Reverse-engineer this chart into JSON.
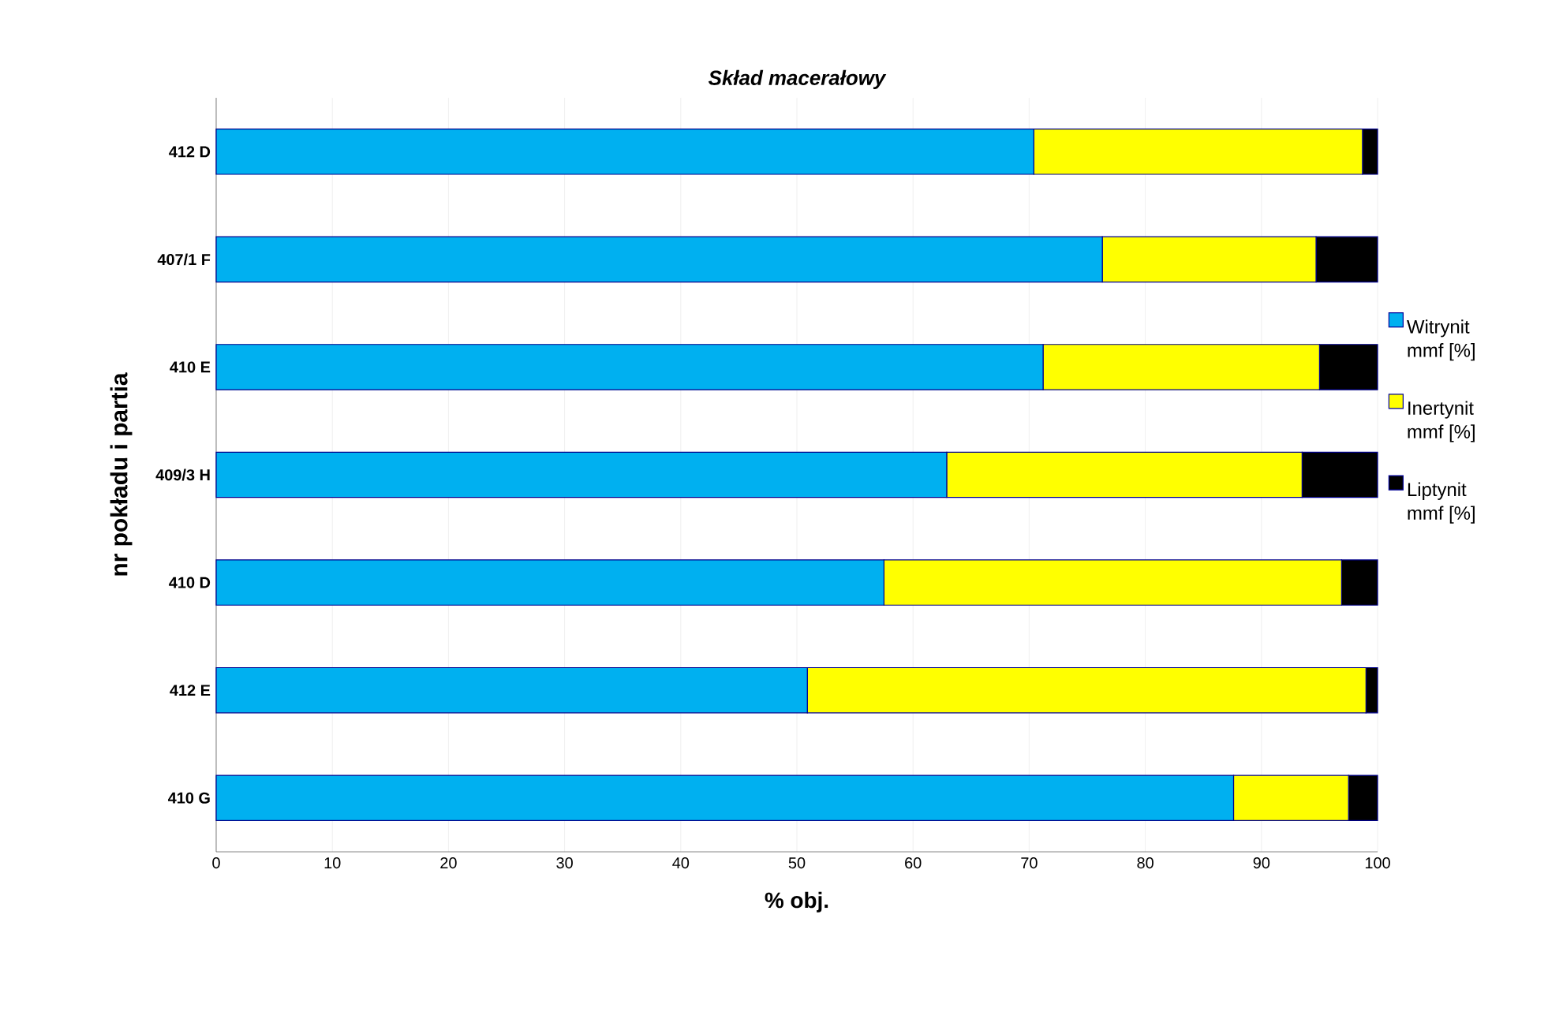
{
  "chart_data": {
    "type": "bar",
    "orientation": "horizontal",
    "stacked": true,
    "title": "Skład macerałowy",
    "xlabel": "% obj.",
    "ylabel": "nr pokładu i partia",
    "categories": [
      "412 D",
      "407/1 F",
      "410 E",
      "409/3 H",
      "410 D",
      "412 E",
      "410 G"
    ],
    "series": [
      {
        "name": "Witrynit mmf [%]",
        "color": "#00b0f0",
        "values": [
          70.4,
          76.3,
          71.2,
          62.9,
          57.5,
          50.9,
          87.6
        ]
      },
      {
        "name": "Inertynit mmf [%]",
        "color": "#ffff00",
        "values": [
          28.3,
          18.4,
          23.8,
          30.6,
          39.4,
          48.1,
          9.9
        ]
      },
      {
        "name": "Liptynit mmf [%]",
        "color": "#000000",
        "values": [
          1.3,
          5.3,
          5.0,
          6.5,
          3.1,
          1.0,
          2.5
        ]
      }
    ],
    "xlim": [
      0,
      100
    ],
    "xticks": [
      0,
      10,
      20,
      30,
      40,
      50,
      60,
      70,
      80,
      90,
      100
    ],
    "grid": "x",
    "legend": "right"
  }
}
